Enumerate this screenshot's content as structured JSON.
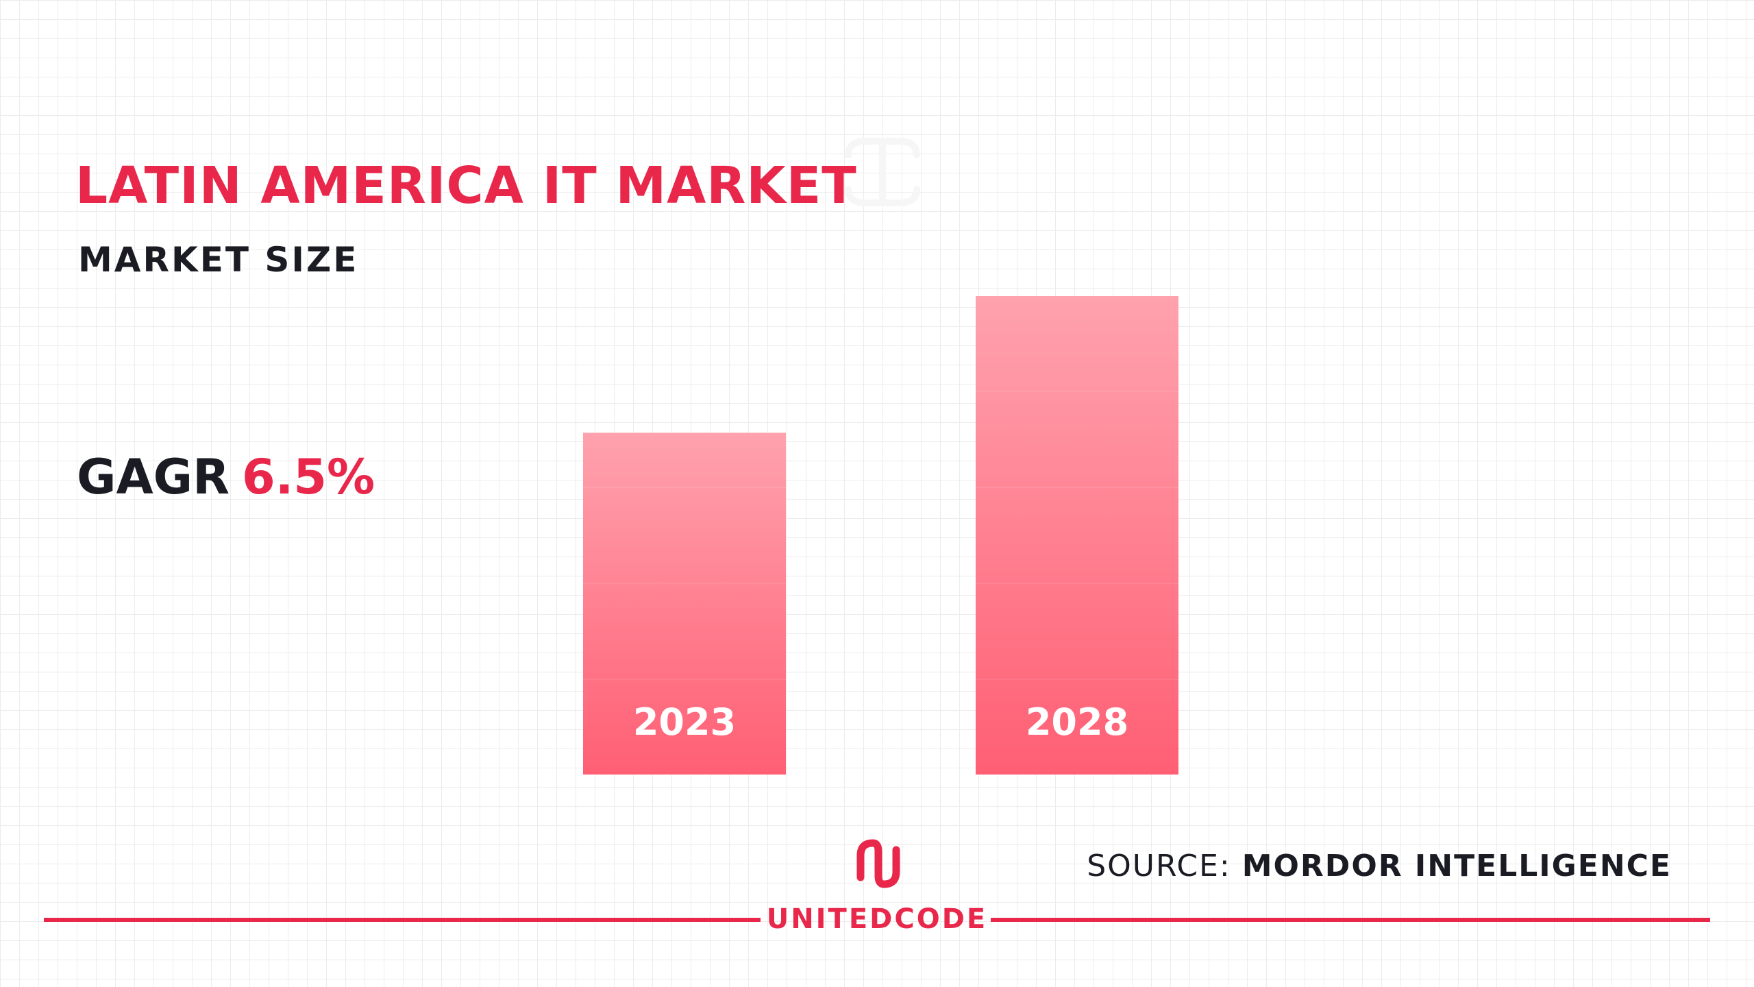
{
  "title": "LATIN AMERICA IT MARKET",
  "subtitle": "MARKET SIZE",
  "gagr": {
    "label": "GAGR",
    "value": "6.5%"
  },
  "source": {
    "label": "SOURCE:",
    "name": "MORDOR INTELLIGENCE"
  },
  "brand": {
    "name": "UNITEDCODE",
    "logo_icon": "unitedcode-logo-icon"
  },
  "colors": {
    "accent": "#e8274b",
    "bar_top": "#ffa2ae",
    "bar_bottom": "#ff5f74",
    "text_dark": "#1b1b24",
    "grid": "#ececec"
  },
  "chart_data": {
    "type": "bar",
    "categories": [
      "2023",
      "2028"
    ],
    "values": [
      1,
      1.4
    ],
    "title": "LATIN AMERICA IT MARKET",
    "subtitle": "MARKET SIZE",
    "xlabel": "",
    "ylabel": "",
    "ylim": [
      0,
      1.4
    ],
    "grid": false,
    "legend": "none",
    "annotation": "GAGR 6.5%"
  }
}
